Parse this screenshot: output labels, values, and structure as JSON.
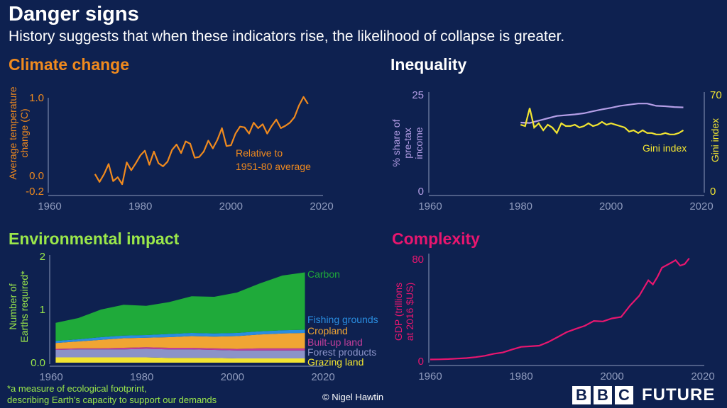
{
  "header": {
    "title": "Danger signs",
    "subtitle": "History suggests that when these indicators rise, the likelihood of collapse is greater."
  },
  "footnote": {
    "line1": "*a measure of ecological footprint,",
    "line2": "describing Earth's capacity to support our demands"
  },
  "credit": "© Nigel Hawtin",
  "logo": {
    "letters": [
      "B",
      "B",
      "C"
    ],
    "word": "FUTURE"
  },
  "colors": {
    "background": "#0e2150",
    "climate": "#f08a1e",
    "inequality_share": "#b49ee6",
    "gini": "#f2e531",
    "environment_title": "#9be84a",
    "complexity": "#e8166f",
    "axis": "#8f9bbd"
  },
  "chart_data": [
    {
      "id": "climate",
      "type": "line",
      "title": "Climate change",
      "ylabel": "Average temperature change (C)",
      "xlim": [
        1960,
        2020
      ],
      "ylim": [
        -0.2,
        1.0
      ],
      "xticks": [
        "1960",
        "1980",
        "2000",
        "2020"
      ],
      "yticks": [
        "1.0",
        "0.0",
        "-0.2"
      ],
      "annotation": [
        "Relative to",
        "1951-80 average"
      ],
      "series": [
        {
          "x": [
            1970,
            1971,
            1972,
            1973,
            1974,
            1975,
            1976,
            1977,
            1978,
            1979,
            1980,
            1981,
            1982,
            1983,
            1984,
            1985,
            1986,
            1987,
            1988,
            1989,
            1990,
            1991,
            1992,
            1993,
            1994,
            1995,
            1996,
            1997,
            1998,
            1999,
            2000,
            2001,
            2002,
            2003,
            2004,
            2005,
            2006,
            2007,
            2008,
            2009,
            2010,
            2011,
            2012,
            2013,
            2014,
            2015,
            2016,
            2017
          ],
          "values": [
            0.02,
            -0.08,
            0.02,
            0.15,
            -0.07,
            -0.02,
            -0.11,
            0.17,
            0.07,
            0.16,
            0.26,
            0.32,
            0.14,
            0.31,
            0.16,
            0.12,
            0.18,
            0.33,
            0.4,
            0.29,
            0.44,
            0.41,
            0.23,
            0.24,
            0.31,
            0.45,
            0.35,
            0.46,
            0.61,
            0.38,
            0.39,
            0.54,
            0.63,
            0.62,
            0.54,
            0.68,
            0.61,
            0.66,
            0.54,
            0.64,
            0.72,
            0.61,
            0.64,
            0.68,
            0.75,
            0.9,
            1.01,
            0.92
          ]
        }
      ]
    },
    {
      "id": "inequality",
      "type": "line",
      "title": "Inequality",
      "ylabel": "% share of pre-tax income",
      "y2label": "Gini index",
      "xlim": [
        1960,
        2020
      ],
      "ylim": [
        0,
        25
      ],
      "y2lim": [
        0,
        70
      ],
      "xticks": [
        "1960",
        "1980",
        "2000",
        "2020"
      ],
      "yticks": [
        "25",
        "0"
      ],
      "y2ticks": [
        "70",
        "0"
      ],
      "series": [
        {
          "name": "",
          "axis": "left",
          "x": [
            1980,
            1982,
            1984,
            1986,
            1988,
            1990,
            1992,
            1994,
            1996,
            1998,
            2000,
            2002,
            2004,
            2006,
            2008,
            2010,
            2012,
            2014,
            2016
          ],
          "values": [
            17.7,
            17.6,
            18.2,
            18.8,
            19.4,
            19.6,
            19.8,
            20.1,
            20.6,
            21.1,
            21.5,
            22.0,
            22.3,
            22.6,
            22.6,
            22.0,
            21.9,
            21.7,
            21.6
          ]
        },
        {
          "name": "Gini index",
          "axis": "right",
          "x": [
            1980,
            1981,
            1982,
            1983,
            1984,
            1985,
            1986,
            1987,
            1988,
            1989,
            1990,
            1991,
            1992,
            1993,
            1994,
            1995,
            1996,
            1997,
            1998,
            1999,
            2000,
            2001,
            2002,
            2003,
            2004,
            2005,
            2006,
            2007,
            2008,
            2009,
            2010,
            2011,
            2012,
            2013,
            2014,
            2015,
            2016
          ],
          "values": [
            48,
            47,
            60,
            46,
            49,
            44,
            48,
            46,
            42,
            49,
            47,
            47,
            48,
            46,
            47,
            49,
            47,
            48,
            50,
            48,
            49,
            48,
            47,
            46,
            43,
            44,
            42,
            44,
            42,
            42,
            41,
            41,
            42,
            41,
            41,
            42,
            44
          ]
        }
      ]
    },
    {
      "id": "environment",
      "type": "area",
      "title": "Environmental impact",
      "ylabel": "Number of Earths required*",
      "xlim": [
        1960,
        2020
      ],
      "ylim": [
        0,
        2
      ],
      "xticks": [
        "1960",
        "1980",
        "2000",
        "2020"
      ],
      "yticks": [
        "2",
        "1",
        "0.0"
      ],
      "x": [
        1961,
        1966,
        1971,
        1976,
        1981,
        1986,
        1991,
        1996,
        2001,
        2006,
        2011,
        2016
      ],
      "series": [
        {
          "name": "Grazing land",
          "color": "#f2e531",
          "values": [
            0.1,
            0.1,
            0.1,
            0.1,
            0.1,
            0.09,
            0.09,
            0.09,
            0.08,
            0.08,
            0.08,
            0.08
          ]
        },
        {
          "name": "Forest products",
          "color": "#8b93c8",
          "values": [
            0.14,
            0.15,
            0.15,
            0.15,
            0.16,
            0.16,
            0.16,
            0.15,
            0.15,
            0.15,
            0.15,
            0.15
          ]
        },
        {
          "name": "Built-up land",
          "color": "#c23e9a",
          "values": [
            0.02,
            0.02,
            0.02,
            0.03,
            0.03,
            0.03,
            0.03,
            0.03,
            0.03,
            0.04,
            0.04,
            0.04
          ]
        },
        {
          "name": "Cropland",
          "color": "#f0a533",
          "values": [
            0.11,
            0.13,
            0.16,
            0.18,
            0.18,
            0.2,
            0.22,
            0.22,
            0.24,
            0.26,
            0.28,
            0.29
          ]
        },
        {
          "name": "Fishing grounds",
          "color": "#2a8de0",
          "values": [
            0.04,
            0.04,
            0.05,
            0.05,
            0.05,
            0.06,
            0.06,
            0.06,
            0.06,
            0.06,
            0.06,
            0.06
          ]
        },
        {
          "name": "Carbon",
          "color": "#1faa3a",
          "values": [
            0.34,
            0.4,
            0.52,
            0.58,
            0.55,
            0.6,
            0.69,
            0.69,
            0.76,
            0.9,
            1.03,
            1.08
          ]
        }
      ]
    },
    {
      "id": "complexity",
      "type": "line",
      "title": "Complexity",
      "ylabel": "GDP (trillions at 2016 $US)",
      "xlim": [
        1960,
        2020
      ],
      "ylim": [
        0,
        80
      ],
      "xticks": [
        "1960",
        "1980",
        "2000",
        "2020"
      ],
      "yticks": [
        "80",
        "0"
      ],
      "series": [
        {
          "x": [
            1960,
            1962,
            1964,
            1966,
            1968,
            1970,
            1972,
            1974,
            1976,
            1978,
            1980,
            1982,
            1984,
            1986,
            1988,
            1990,
            1992,
            1994,
            1996,
            1998,
            2000,
            2002,
            2004,
            2006,
            2008,
            2009,
            2010,
            2011,
            2013,
            2014,
            2015,
            2016,
            2017
          ],
          "values": [
            1.4,
            1.5,
            1.7,
            2.1,
            2.5,
            3.2,
            4.3,
            5.9,
            6.9,
            9.2,
            11.3,
            11.7,
            12.2,
            15.1,
            18.9,
            22.8,
            25.4,
            27.8,
            31.6,
            31.2,
            33.6,
            34.7,
            43.8,
            51.4,
            63.5,
            60.3,
            66.1,
            73.4,
            77.2,
            79.3,
            75.0,
            76.2,
            80.7
          ]
        }
      ]
    }
  ]
}
